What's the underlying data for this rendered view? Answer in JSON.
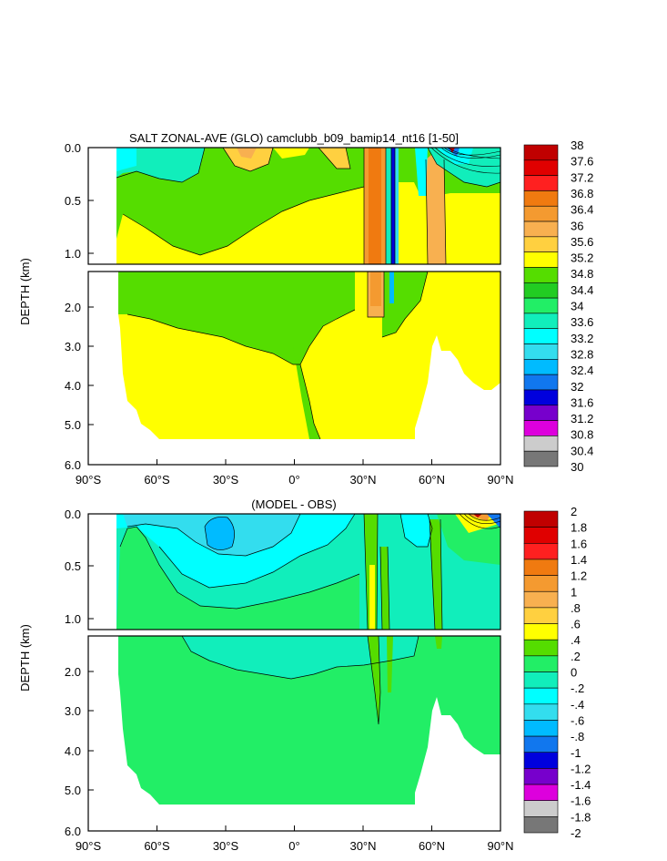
{
  "chart_data": [
    {
      "type": "contour",
      "title": "SALT ZONAL-AVE (GLO) camclubb_b09_bamip14_nt16 [1-50]",
      "ylabel": "DEPTH (km)",
      "xlabel": "",
      "xlim": [
        -90,
        90
      ],
      "ylim": [
        0,
        6
      ],
      "x_ticks": [
        "90°S",
        "60°S",
        "30°S",
        "0°",
        "30°N",
        "60°N",
        "90°N"
      ],
      "y_ticks_upper": [
        "0.0",
        "0.5",
        "1.0"
      ],
      "y_ticks_lower": [
        "2.0",
        "3.0",
        "4.0",
        "5.0",
        "6.0"
      ],
      "colorbar_labels": [
        "38",
        "37.6",
        "37.2",
        "36.8",
        "36.4",
        "36",
        "35.6",
        "35.2",
        "34.8",
        "34.4",
        "34",
        "33.6",
        "33.2",
        "32.8",
        "32.4",
        "32",
        "31.6",
        "31.2",
        "30.8",
        "30.4",
        "30"
      ],
      "colorbar_colors": [
        "#c00000",
        "#e00000",
        "#ff2020",
        "#f07a10",
        "#f49a30",
        "#f8b050",
        "#ffd040",
        "#ffff00",
        "#55dd00",
        "#22cc22",
        "#22ee66",
        "#11eebb",
        "#00ffff",
        "#33ddee",
        "#00bbff",
        "#1177ee",
        "#0000dd",
        "#7700cc",
        "#dd00dd",
        "#cccccc",
        "#777777"
      ]
    },
    {
      "type": "contour",
      "title": "(MODEL - OBS)",
      "ylabel": "DEPTH (km)",
      "xlabel": "",
      "xlim": [
        -90,
        90
      ],
      "ylim": [
        0,
        6
      ],
      "x_ticks": [
        "90°S",
        "60°S",
        "30°S",
        "0°",
        "30°N",
        "60°N",
        "90°N"
      ],
      "y_ticks_upper": [
        "0.0",
        "0.5",
        "1.0"
      ],
      "y_ticks_lower": [
        "2.0",
        "3.0",
        "4.0",
        "5.0",
        "6.0"
      ],
      "colorbar_labels": [
        "2",
        "1.8",
        "1.6",
        "1.4",
        "1.2",
        "1",
        ".8",
        ".6",
        ".4",
        ".2",
        "0",
        "-.2",
        "-.4",
        "-.6",
        "-.8",
        "-1",
        "-1.2",
        "-1.4",
        "-1.6",
        "-1.8",
        "-2"
      ],
      "colorbar_colors": [
        "#c00000",
        "#e00000",
        "#ff2020",
        "#f07a10",
        "#f49a30",
        "#f8b050",
        "#ffd040",
        "#ffff00",
        "#55dd00",
        "#22ee66",
        "#11eebb",
        "#00ffff",
        "#33ddee",
        "#00bbff",
        "#1177ee",
        "#0000dd",
        "#7700cc",
        "#dd00dd",
        "#cccccc",
        "#777777"
      ]
    }
  ]
}
